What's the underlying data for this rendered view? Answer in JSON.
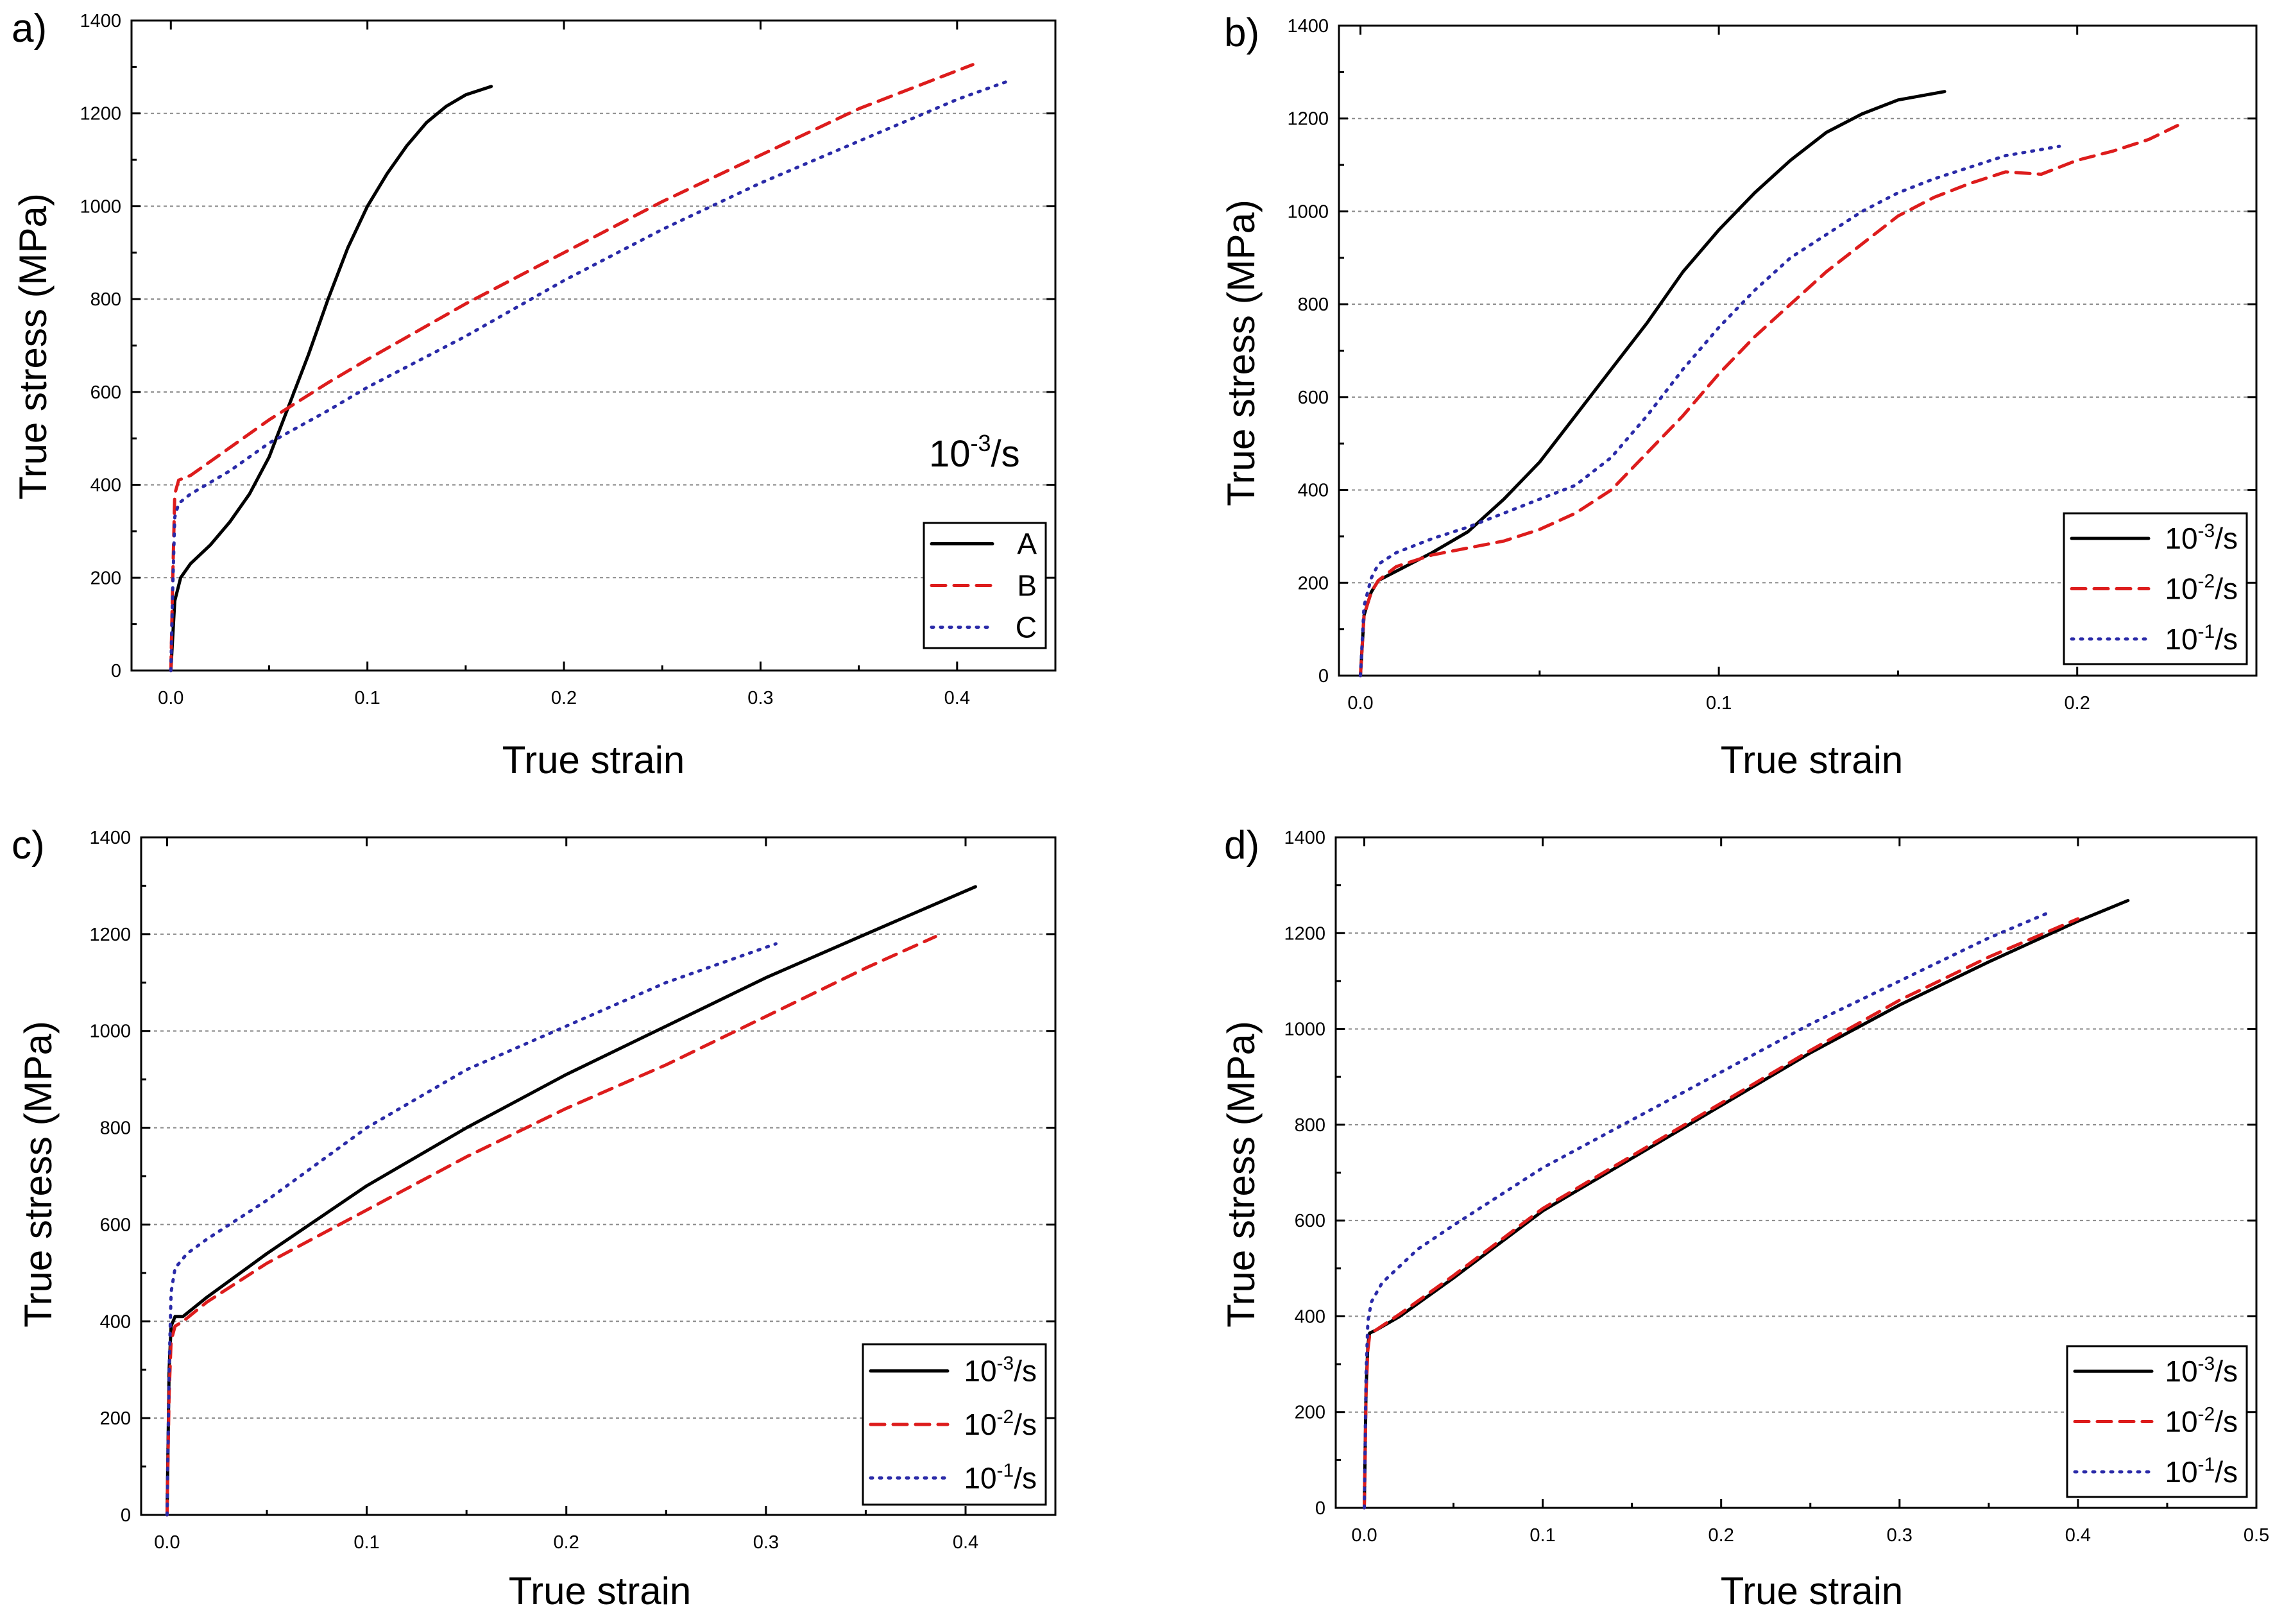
{
  "figure": {
    "colors": {
      "solid": "#000000",
      "dashed": "#dd1c1c",
      "dotted": "#2a2aa8"
    }
  },
  "chart_data": [
    {
      "id": "a",
      "type": "line",
      "panel_label": "a)",
      "xlabel": "True strain",
      "ylabel": "True stress (MPa)",
      "xlim": [
        -0.02,
        0.45
      ],
      "ylim": [
        0,
        1400
      ],
      "xticks": [
        0.0,
        0.1,
        0.2,
        0.3,
        0.4
      ],
      "xtick_labels": [
        "0.0",
        "0.1",
        "0.2",
        "0.3",
        "0.4"
      ],
      "yticks": [
        0,
        200,
        400,
        600,
        800,
        1000,
        1200,
        1400
      ],
      "ytick_labels": [
        "0",
        "200",
        "400",
        "600",
        "800",
        "1000",
        "1200",
        "1400"
      ],
      "grid": "horizontal",
      "annotation": {
        "base": "10",
        "sup": "-3",
        "tail": "/s"
      },
      "legend": {
        "position": "bottom-right",
        "style": "plain"
      },
      "series": [
        {
          "name": "A",
          "label": "A",
          "style": "solid",
          "x": [
            0,
            0.002,
            0.005,
            0.01,
            0.02,
            0.03,
            0.04,
            0.05,
            0.06,
            0.07,
            0.08,
            0.09,
            0.1,
            0.11,
            0.12,
            0.13,
            0.14,
            0.15,
            0.163
          ],
          "y": [
            0,
            150,
            200,
            230,
            270,
            320,
            380,
            460,
            570,
            680,
            800,
            910,
            1000,
            1070,
            1130,
            1180,
            1215,
            1240,
            1258
          ]
        },
        {
          "name": "B",
          "label": "B",
          "style": "dashed",
          "x": [
            0,
            0.001,
            0.002,
            0.004,
            0.01,
            0.03,
            0.05,
            0.08,
            0.1,
            0.15,
            0.2,
            0.25,
            0.3,
            0.35,
            0.408
          ],
          "y": [
            0,
            200,
            380,
            410,
            420,
            480,
            540,
            620,
            670,
            790,
            900,
            1010,
            1110,
            1210,
            1305
          ]
        },
        {
          "name": "C",
          "label": "C",
          "style": "dotted",
          "x": [
            0,
            0.001,
            0.002,
            0.004,
            0.01,
            0.03,
            0.05,
            0.08,
            0.1,
            0.15,
            0.2,
            0.25,
            0.3,
            0.35,
            0.4,
            0.425
          ],
          "y": [
            0,
            180,
            330,
            360,
            380,
            430,
            490,
            560,
            610,
            720,
            840,
            950,
            1050,
            1140,
            1230,
            1268
          ]
        }
      ]
    },
    {
      "id": "b",
      "type": "line",
      "panel_label": "b)",
      "xlabel": "True strain",
      "ylabel": "True stress (MPa)",
      "xlim": [
        -0.006,
        0.25
      ],
      "ylim": [
        0,
        1400
      ],
      "xticks": [
        0.0,
        0.1,
        0.2
      ],
      "xtick_labels": [
        "0.0",
        "0.1",
        "0.2"
      ],
      "yticks": [
        0,
        200,
        400,
        600,
        800,
        1000,
        1200,
        1400
      ],
      "ytick_labels": [
        "0",
        "200",
        "400",
        "600",
        "800",
        "1000",
        "1200",
        "1400"
      ],
      "grid": "horizontal",
      "legend": {
        "position": "bottom-right",
        "style": "rate"
      },
      "series": [
        {
          "name": "10^-3/s",
          "label": {
            "base": "10",
            "sup": "-3",
            "tail": "/s"
          },
          "style": "solid",
          "x": [
            0,
            0.001,
            0.003,
            0.005,
            0.01,
            0.02,
            0.03,
            0.04,
            0.05,
            0.06,
            0.07,
            0.08,
            0.09,
            0.1,
            0.11,
            0.12,
            0.13,
            0.14,
            0.15,
            0.163
          ],
          "y": [
            0,
            130,
            180,
            205,
            225,
            265,
            310,
            380,
            460,
            560,
            660,
            760,
            870,
            960,
            1040,
            1110,
            1170,
            1210,
            1240,
            1258
          ]
        },
        {
          "name": "10^-2/s",
          "label": {
            "base": "10",
            "sup": "-2",
            "tail": "/s"
          },
          "style": "dashed",
          "x": [
            0,
            0.001,
            0.003,
            0.005,
            0.01,
            0.02,
            0.03,
            0.04,
            0.05,
            0.06,
            0.07,
            0.08,
            0.09,
            0.1,
            0.11,
            0.12,
            0.13,
            0.14,
            0.15,
            0.16,
            0.17,
            0.18,
            0.19,
            0.2,
            0.21,
            0.22,
            0.228
          ],
          "y": [
            0,
            130,
            180,
            205,
            235,
            260,
            275,
            290,
            315,
            350,
            400,
            480,
            560,
            650,
            730,
            800,
            870,
            930,
            990,
            1030,
            1060,
            1085,
            1080,
            1110,
            1130,
            1155,
            1185
          ]
        },
        {
          "name": "10^-1/s",
          "label": {
            "base": "10",
            "sup": "-1",
            "tail": "/s"
          },
          "style": "dotted",
          "x": [
            0,
            0.001,
            0.003,
            0.005,
            0.01,
            0.02,
            0.03,
            0.04,
            0.05,
            0.06,
            0.07,
            0.08,
            0.09,
            0.1,
            0.11,
            0.12,
            0.13,
            0.14,
            0.15,
            0.16,
            0.17,
            0.18,
            0.195
          ],
          "y": [
            0,
            150,
            210,
            240,
            265,
            295,
            320,
            350,
            380,
            410,
            470,
            560,
            660,
            750,
            830,
            900,
            950,
            1000,
            1040,
            1070,
            1095,
            1120,
            1140
          ]
        }
      ]
    },
    {
      "id": "c",
      "type": "line",
      "panel_label": "c)",
      "xlabel": "True strain",
      "ylabel": "True stress (MPa)",
      "xlim": [
        -0.013,
        0.445
      ],
      "ylim": [
        0,
        1400
      ],
      "xticks": [
        0.0,
        0.1,
        0.2,
        0.3,
        0.4
      ],
      "xtick_labels": [
        "0.0",
        "0.1",
        "0.2",
        "0.3",
        "0.4"
      ],
      "yticks": [
        0,
        200,
        400,
        600,
        800,
        1000,
        1200,
        1400
      ],
      "ytick_labels": [
        "0",
        "200",
        "400",
        "600",
        "800",
        "1000",
        "1200",
        "1400"
      ],
      "grid": "horizontal",
      "legend": {
        "position": "bottom-right",
        "style": "rate"
      },
      "series": [
        {
          "name": "10^-3/s",
          "label": {
            "base": "10",
            "sup": "-3",
            "tail": "/s"
          },
          "style": "solid",
          "x": [
            0,
            0.001,
            0.002,
            0.004,
            0.008,
            0.02,
            0.05,
            0.1,
            0.15,
            0.2,
            0.25,
            0.3,
            0.35,
            0.405
          ],
          "y": [
            0,
            300,
            390,
            410,
            410,
            450,
            540,
            680,
            800,
            910,
            1010,
            1110,
            1200,
            1298
          ]
        },
        {
          "name": "10^-2/s",
          "label": {
            "base": "10",
            "sup": "-2",
            "tail": "/s"
          },
          "style": "dashed",
          "x": [
            0,
            0.001,
            0.002,
            0.004,
            0.008,
            0.02,
            0.05,
            0.1,
            0.15,
            0.2,
            0.25,
            0.3,
            0.35,
            0.385
          ],
          "y": [
            0,
            250,
            360,
            390,
            400,
            440,
            520,
            630,
            740,
            840,
            930,
            1030,
            1130,
            1195
          ]
        },
        {
          "name": "10^-1/s",
          "label": {
            "base": "10",
            "sup": "-1",
            "tail": "/s"
          },
          "style": "dotted",
          "x": [
            0,
            0.001,
            0.002,
            0.004,
            0.01,
            0.02,
            0.05,
            0.1,
            0.15,
            0.2,
            0.25,
            0.305
          ],
          "y": [
            0,
            300,
            460,
            510,
            540,
            570,
            650,
            800,
            920,
            1010,
            1100,
            1180
          ]
        }
      ]
    },
    {
      "id": "d",
      "type": "line",
      "panel_label": "d)",
      "xlabel": "True strain",
      "ylabel": "True stress (MPa)",
      "xlim": [
        -0.016,
        0.5
      ],
      "ylim": [
        0,
        1400
      ],
      "xticks": [
        0.0,
        0.1,
        0.2,
        0.3,
        0.4,
        0.5
      ],
      "xtick_labels": [
        "0.0",
        "0.1",
        "0.2",
        "0.3",
        "0.4",
        "0.5"
      ],
      "yticks": [
        0,
        200,
        400,
        600,
        800,
        1000,
        1200,
        1400
      ],
      "ytick_labels": [
        "0",
        "200",
        "400",
        "600",
        "800",
        "1000",
        "1200",
        "1400"
      ],
      "grid": "horizontal",
      "legend": {
        "position": "bottom-right",
        "style": "rate"
      },
      "series": [
        {
          "name": "10^-3/s",
          "label": {
            "base": "10",
            "sup": "-3",
            "tail": "/s"
          },
          "style": "solid",
          "x": [
            0,
            0.001,
            0.002,
            0.003,
            0.006,
            0.02,
            0.05,
            0.1,
            0.15,
            0.2,
            0.25,
            0.3,
            0.35,
            0.4,
            0.428
          ],
          "y": [
            0,
            250,
            340,
            365,
            370,
            400,
            480,
            620,
            730,
            840,
            950,
            1050,
            1140,
            1225,
            1268
          ]
        },
        {
          "name": "10^-2/s",
          "label": {
            "base": "10",
            "sup": "-2",
            "tail": "/s"
          },
          "style": "dashed",
          "x": [
            0,
            0.001,
            0.002,
            0.003,
            0.006,
            0.02,
            0.05,
            0.1,
            0.15,
            0.2,
            0.25,
            0.3,
            0.35,
            0.4
          ],
          "y": [
            0,
            240,
            330,
            360,
            370,
            405,
            485,
            625,
            735,
            845,
            955,
            1060,
            1150,
            1230
          ]
        },
        {
          "name": "10^-1/s",
          "label": {
            "base": "10",
            "sup": "-1",
            "tail": "/s"
          },
          "style": "dotted",
          "x": [
            0,
            0.001,
            0.002,
            0.004,
            0.01,
            0.03,
            0.05,
            0.1,
            0.15,
            0.2,
            0.25,
            0.3,
            0.35,
            0.385
          ],
          "y": [
            0,
            280,
            390,
            430,
            470,
            540,
            590,
            710,
            810,
            910,
            1010,
            1100,
            1190,
            1245
          ]
        }
      ]
    }
  ]
}
